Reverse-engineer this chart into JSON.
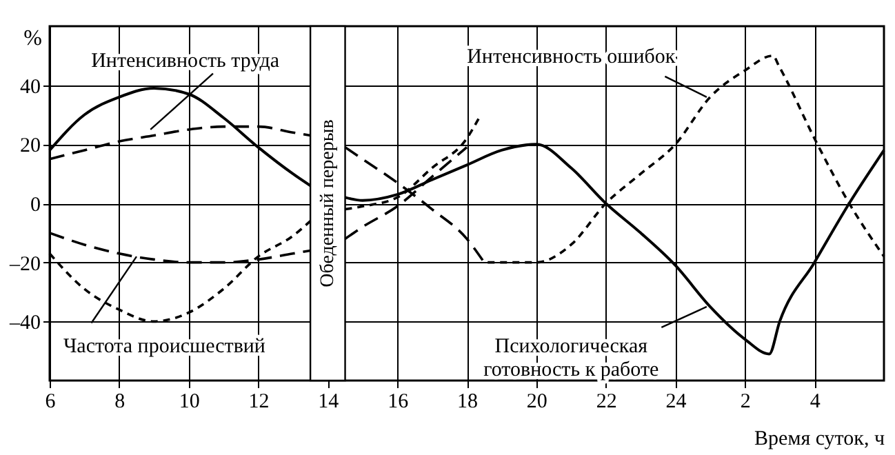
{
  "chart_data": {
    "type": "line",
    "xlabel": "Время суток, ч",
    "ylabel": "%",
    "xlim": [
      "--01-01T06:00",
      "--01-02T06:00"
    ],
    "ylim": [
      -60,
      60
    ],
    "xticks": [
      {
        "value": "--01-01T06:00",
        "label": "6"
      },
      {
        "value": "--01-01T08:00",
        "label": "8"
      },
      {
        "value": "--01-01T10:00",
        "label": "10"
      },
      {
        "value": "--01-01T12:00",
        "label": "12"
      },
      {
        "value": "--01-01T14:00",
        "label": "14"
      },
      {
        "value": "--01-01T16:00",
        "label": "16"
      },
      {
        "value": "--01-01T18:00",
        "label": "18"
      },
      {
        "value": "--01-01T20:00",
        "label": "20"
      },
      {
        "value": "--01-01T22:00",
        "label": "22"
      },
      {
        "value": "--01-02T00:00",
        "label": "24"
      },
      {
        "value": "--01-02T02:00",
        "label": "2"
      },
      {
        "value": "--01-02T04:00",
        "label": "4"
      }
    ],
    "yticks": [
      {
        "value": -40,
        "label": "–40"
      },
      {
        "value": -20,
        "label": "–20"
      },
      0,
      20,
      40
    ],
    "grid": true,
    "series": [
      {
        "color": "#000000",
        "line_style": "solid",
        "x": [
          "--01-01T06:00",
          "--01-01T07:00",
          "--01-01T08:00",
          "--01-01T09:00",
          "--01-01T10:00",
          "--01-01T11:00",
          "--01-01T12:00",
          "--01-01T13:00",
          "--01-01T13:30",
          "--01-01T14:00",
          "--01-01T14:30",
          "--01-01T15:00",
          "--01-01T16:00",
          "--01-01T17:00",
          "--01-01T18:00",
          "--01-01T19:00",
          "--01-01T20:00",
          "--01-01T21:00",
          "--01-01T22:00",
          "--01-01T23:00",
          "--01-02T00:00",
          "--01-02T01:00",
          "--01-02T02:00",
          "--01-02T02:42",
          "--01-02T03:00",
          "--01-02T04:00",
          "--01-02T05:00",
          "--01-02T06:00"
        ],
        "values": [
          18,
          30,
          36,
          39,
          37,
          29,
          19,
          10,
          6,
          null,
          2,
          1,
          3,
          8,
          13,
          18,
          20,
          12,
          0,
          -10,
          -21,
          -35,
          -46,
          -51,
          -40,
          -20,
          0,
          18
        ]
      },
      {
        "color": "#000000",
        "line_style": "dashed",
        "x": [
          "--01-01T06:00",
          "--01-01T07:00",
          "--01-01T08:00",
          "--01-01T09:00",
          "--01-01T10:00",
          "--01-01T11:00",
          "--01-01T12:00",
          "--01-01T13:00",
          "--01-01T13:30",
          "--01-01T14:00",
          "--01-01T14:30",
          "--01-01T15:00",
          "--01-01T16:00",
          "--01-01T17:00",
          "--01-01T18:00",
          "--01-01T18:30"
        ],
        "values": [
          15,
          18,
          21,
          23,
          25,
          26,
          26,
          24,
          23,
          null,
          19,
          15,
          7,
          -2,
          -12,
          -20
        ]
      },
      {
        "color": "#000000",
        "line_style": "dashed",
        "x": [
          "--01-01T06:00",
          "--01-01T07:00",
          "--01-01T08:00",
          "--01-01T09:00",
          "--01-01T10:00",
          "--01-01T11:00",
          "--01-01T12:00",
          "--01-01T13:00",
          "--01-01T13:30",
          "--01-01T14:00",
          "--01-01T14:30",
          "--01-01T15:00",
          "--01-01T16:00",
          "--01-01T17:00",
          "--01-01T18:00"
        ],
        "values": [
          -10,
          -14,
          -17,
          -19,
          -20,
          -20,
          -19,
          -17,
          -16,
          null,
          -12,
          -8,
          -1,
          9,
          19
        ]
      },
      {
        "color": "#000000",
        "line_style": "dashed",
        "x": [
          "--01-01T06:00",
          "--01-01T07:00",
          "--01-01T08:00",
          "--01-01T09:00",
          "--01-01T10:00",
          "--01-01T11:00",
          "--01-01T12:00",
          "--01-01T13:00",
          "--01-01T13:30",
          "--01-01T14:00",
          "--01-01T14:30",
          "--01-01T15:00",
          "--01-01T16:00",
          "--01-01T17:00",
          "--01-01T18:00",
          "--01-01T18:24",
          "--01-01T18:30",
          "--01-01T18:36",
          "--01-01T19:00",
          "--01-01T20:00",
          "--01-01T21:00",
          "--01-01T22:00",
          "--01-01T23:00",
          "--01-02T00:00",
          "--01-02T01:00",
          "--01-02T02:00",
          "--01-02T02:48",
          "--01-02T03:00",
          "--01-02T04:00",
          "--01-02T05:00",
          "--01-02T06:00"
        ],
        "values": [
          -17,
          -29,
          -36,
          -40,
          -37,
          -29,
          -18,
          -11,
          -6,
          null,
          -2,
          -1,
          2,
          12,
          22,
          30,
          null,
          -20,
          -20,
          -20,
          -14,
          0,
          10,
          20,
          36,
          45,
          50,
          46,
          22,
          0,
          -18
        ]
      }
    ],
    "bands": [
      {
        "axis": "x",
        "from": "--01-01T13:30",
        "to": "--01-01T14:30",
        "label": "Обеденный перерыв",
        "color": "#ffffff"
      }
    ],
    "annotations": [
      {
        "text": "Интенсивность труда",
        "x": "--01-01T08:54",
        "y": 25
      },
      {
        "text": "Интенсивность ошибок",
        "x": "--01-02T00:54",
        "y": 36
      },
      {
        "text": "Частота происшествий",
        "x": "--01-01T08:30",
        "y": -18
      },
      {
        "text": "Психологическая\nготовность к работе",
        "x": "--01-02T00:54",
        "y": -35
      }
    ]
  }
}
